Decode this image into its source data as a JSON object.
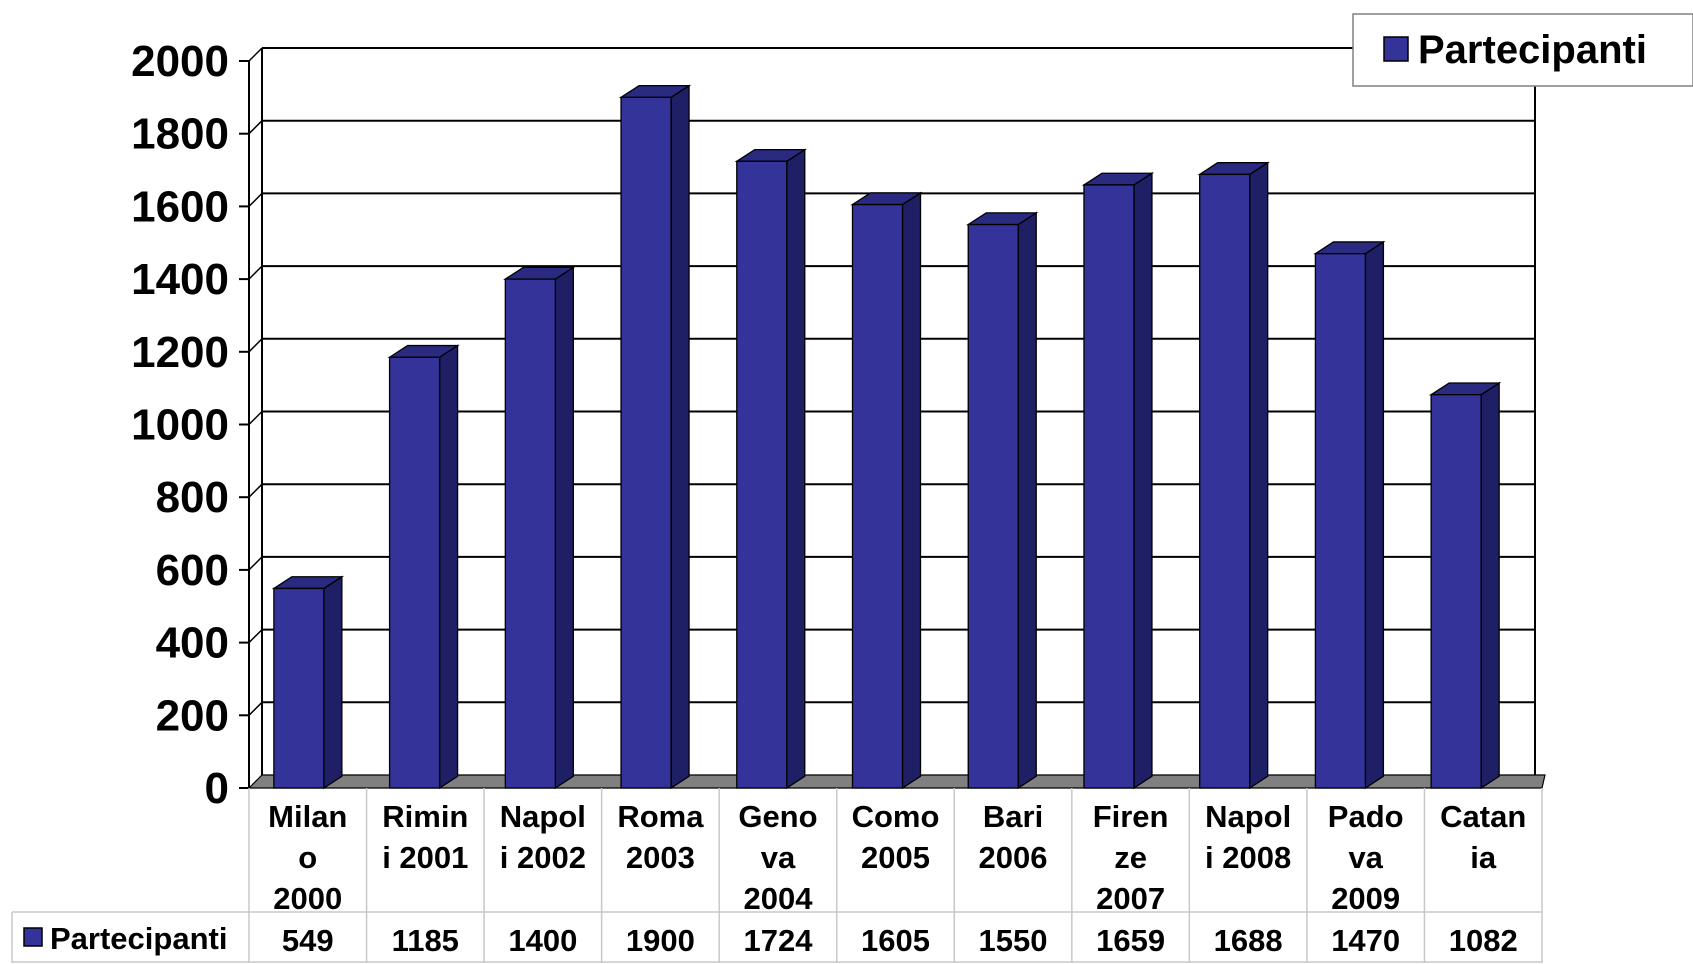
{
  "chart_data": {
    "type": "bar",
    "categories": [
      [
        "Milan",
        "o",
        "2000"
      ],
      [
        "Rimin",
        "i 2001"
      ],
      [
        "Napol",
        "i 2002"
      ],
      [
        "Roma",
        "2003"
      ],
      [
        "Geno",
        "va",
        "2004"
      ],
      [
        "Como",
        "2005"
      ],
      [
        "Bari",
        "2006"
      ],
      [
        "Firen",
        "ze",
        "2007"
      ],
      [
        "Napol",
        "i 2008"
      ],
      [
        "Pado",
        "va",
        "2009"
      ],
      [
        "Catan",
        "ia"
      ]
    ],
    "series": [
      {
        "name": "Partecipanti",
        "values": [
          549,
          1185,
          1400,
          1900,
          1724,
          1605,
          1550,
          1659,
          1688,
          1470,
          1082
        ],
        "color": "#333399"
      }
    ],
    "ylim": [
      0,
      2000
    ],
    "yticks": [
      0,
      200,
      400,
      600,
      800,
      1000,
      1200,
      1400,
      1600,
      1800,
      2000
    ],
    "grid": true,
    "legend": "top-right",
    "data_table": true,
    "colors": {
      "bar_front": "#333399",
      "bar_side": "#1f1f66",
      "bar_top": "#2a2a80",
      "floor": "#808080"
    }
  }
}
